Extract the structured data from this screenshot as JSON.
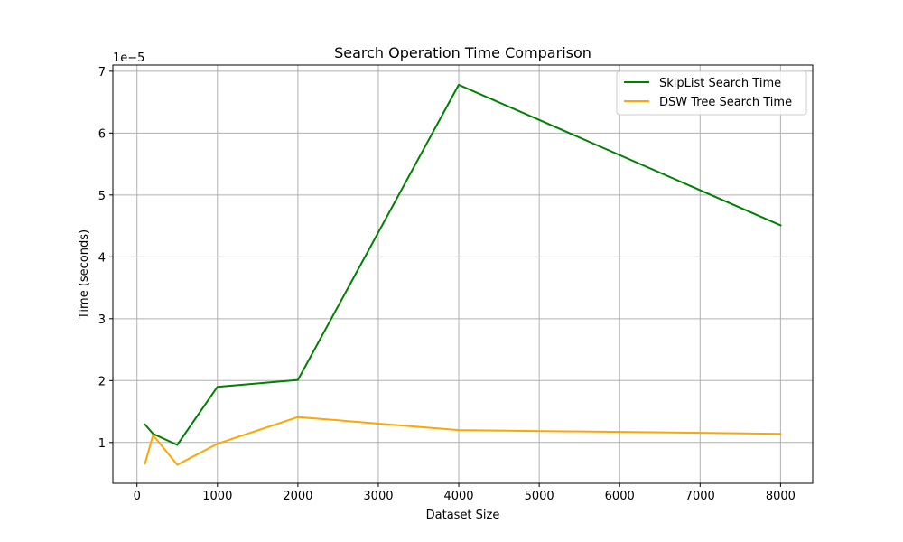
{
  "chart_data": {
    "type": "line",
    "title": "Search Operation Time Comparison",
    "xlabel": "Dataset Size",
    "ylabel": "Time (seconds)",
    "y_offset_label": "1e−5",
    "xlim": [
      -300,
      8400
    ],
    "ylim": [
      0.34,
      7.1
    ],
    "x_ticks": [
      0,
      1000,
      2000,
      3000,
      4000,
      5000,
      6000,
      7000,
      8000
    ],
    "x_tick_labels": [
      "0",
      "1000",
      "2000",
      "3000",
      "4000",
      "5000",
      "6000",
      "7000",
      "8000"
    ],
    "y_ticks": [
      1,
      2,
      3,
      4,
      5,
      6,
      7
    ],
    "y_tick_labels": [
      "1",
      "2",
      "3",
      "4",
      "5",
      "6",
      "7"
    ],
    "grid": true,
    "legend_position": "top-right",
    "x": [
      100,
      200,
      500,
      1000,
      2000,
      4000,
      8000
    ],
    "series": [
      {
        "name": "SkipList Search Time",
        "color": "#008000",
        "values": [
          1.29,
          1.14,
          0.96,
          1.9,
          2.01,
          6.78,
          4.51
        ]
      },
      {
        "name": "DSW Tree Search Time",
        "color": "#FFA500",
        "values": [
          0.66,
          1.12,
          0.64,
          0.98,
          1.41,
          1.2,
          1.14
        ]
      }
    ]
  }
}
